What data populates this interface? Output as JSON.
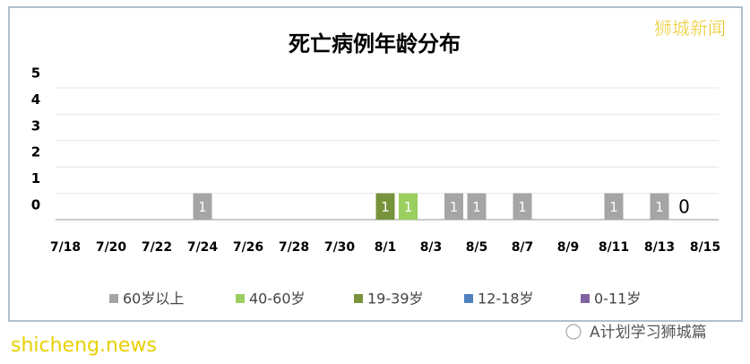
{
  "chart_data": {
    "type": "bar",
    "stacked": true,
    "title": "死亡病例年龄分布",
    "categories": [
      "7/18",
      null,
      "7/20",
      null,
      "7/22",
      null,
      "7/24",
      null,
      "7/26",
      null,
      "7/28",
      null,
      "7/30",
      null,
      "8/1",
      null,
      "8/3",
      null,
      "8/5",
      null,
      "8/7",
      null,
      "8/9",
      null,
      "8/11",
      null,
      "8/13",
      null,
      "8/15"
    ],
    "series": [
      {
        "name": "60岁以上",
        "color": "#a5a5a5",
        "values": [
          null,
          null,
          null,
          null,
          null,
          null,
          1,
          null,
          null,
          null,
          null,
          null,
          null,
          null,
          null,
          null,
          null,
          1,
          1,
          null,
          1,
          null,
          null,
          null,
          1,
          null,
          1,
          0,
          null
        ]
      },
      {
        "name": "40-60岁",
        "color": "#9bcf5f",
        "values": [
          null,
          null,
          null,
          null,
          null,
          null,
          null,
          null,
          null,
          null,
          null,
          null,
          null,
          null,
          null,
          1,
          null,
          null,
          null,
          null,
          null,
          null,
          null,
          null,
          null,
          null,
          null,
          null,
          null
        ]
      },
      {
        "name": "19-39岁",
        "color": "#77933c",
        "values": [
          null,
          null,
          null,
          null,
          null,
          null,
          null,
          null,
          null,
          null,
          null,
          null,
          null,
          null,
          1,
          null,
          null,
          null,
          null,
          null,
          null,
          null,
          null,
          null,
          null,
          null,
          null,
          null,
          null
        ]
      },
      {
        "name": "12-18岁",
        "color": "#4f81bd",
        "values": [
          null,
          null,
          null,
          null,
          null,
          null,
          null,
          null,
          null,
          null,
          null,
          null,
          null,
          null,
          null,
          null,
          null,
          null,
          null,
          null,
          null,
          null,
          null,
          null,
          null,
          null,
          null,
          null,
          null
        ]
      },
      {
        "name": "0-11岁",
        "color": "#8064a2",
        "values": [
          null,
          null,
          null,
          null,
          null,
          null,
          null,
          null,
          null,
          null,
          null,
          null,
          null,
          null,
          null,
          null,
          null,
          null,
          null,
          null,
          null,
          null,
          null,
          null,
          null,
          null,
          null,
          null,
          null
        ]
      }
    ],
    "ylim": [
      0,
      5
    ],
    "yticks": [
      0,
      1,
      2,
      3,
      4,
      5
    ],
    "grid": true,
    "legend": "bottom"
  },
  "watermarks": {
    "top_right": "狮城新闻",
    "bottom_left": "shicheng.news",
    "bottom_right": "A计划学习狮城篇"
  }
}
